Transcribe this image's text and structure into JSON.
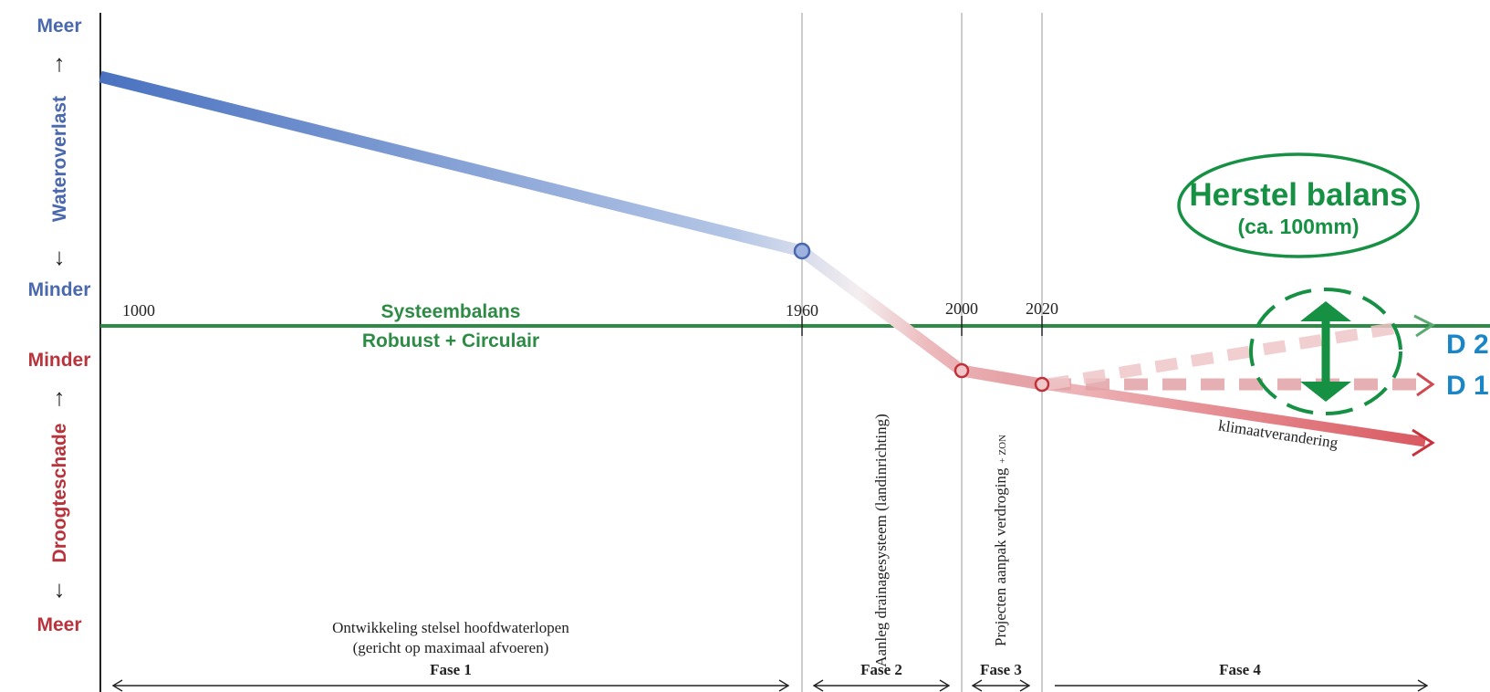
{
  "y_axis": {
    "top": {
      "label": "Meer",
      "color": "#4a68ad"
    },
    "top_title": {
      "label": "Wateroverlast",
      "color": "#4a68ad"
    },
    "top_bottom": {
      "label": "Minder",
      "color": "#4a68ad"
    },
    "bottom_top": {
      "label": "Minder",
      "color": "#b8333b"
    },
    "bottom_title": {
      "label": "Droogteschade",
      "color": "#b8333b"
    },
    "bottom": {
      "label": "Meer",
      "color": "#b8333b"
    },
    "arrow_up": "↑",
    "arrow_down": "↓"
  },
  "years": [
    "1000",
    "1960",
    "2000",
    "2020"
  ],
  "balance": {
    "line1": "Systeembalans",
    "line2": "Robuust + Circulair",
    "color": "#2e8b45"
  },
  "phases": [
    {
      "label": "Fase 1",
      "description_line1": "Ontwikkeling stelsel hoofdwaterlopen",
      "description_line2": "(gericht op maximaal afvoeren)"
    },
    {
      "label": "Fase 2",
      "description": "Aanleg drainagesysteem (landinrichting)"
    },
    {
      "label": "Fase 3",
      "description": "Projecten aanpak verdroging",
      "description_suffix": "+ ZON"
    },
    {
      "label": "Fase 4"
    }
  ],
  "trend_label": "klimaatverandering",
  "scenarios": {
    "d2": "D 2",
    "d1": "D 1",
    "color": "#1a86c8"
  },
  "herstel": {
    "title": "Herstel balans",
    "subtitle": "(ca. 100mm)",
    "color": "#169143"
  },
  "colors": {
    "blue_line": "#4a72c0",
    "red_line": "#d9646b",
    "red_arrow": "#c8323c",
    "grid": "#9a9a9a"
  }
}
